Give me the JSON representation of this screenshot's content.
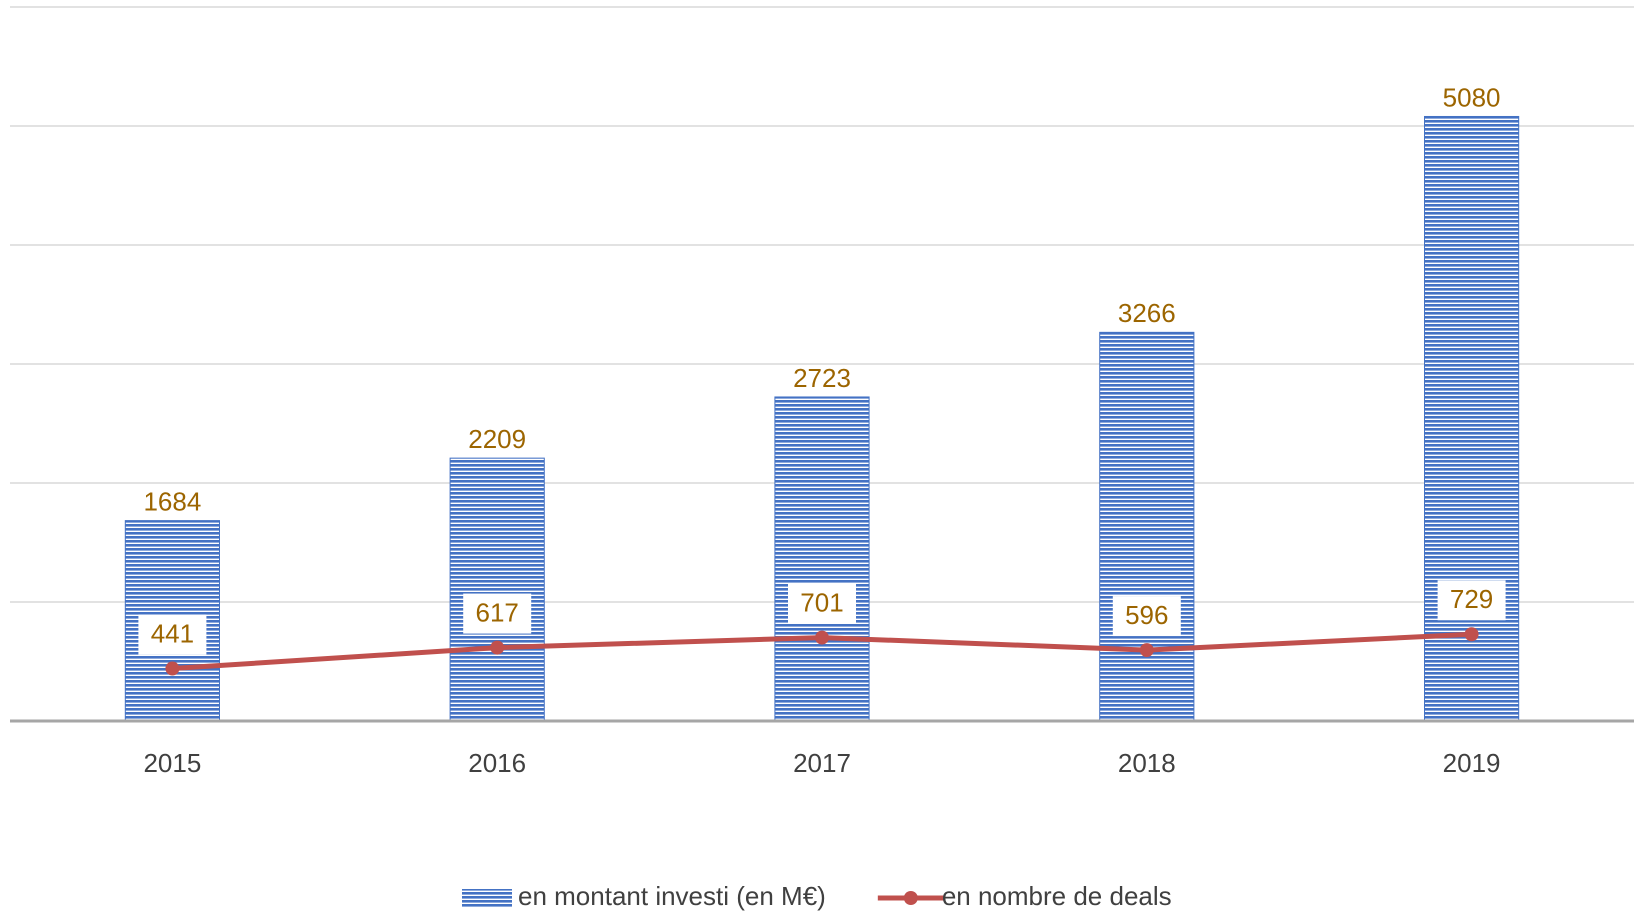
{
  "chart_data": {
    "type": "bar",
    "categories": [
      "2015",
      "2016",
      "2017",
      "2018",
      "2019"
    ],
    "series": [
      {
        "name": "en montant investi (en M€)",
        "type": "bar",
        "color": "#4472c4",
        "values": [
          1684,
          2209,
          2723,
          3266,
          5080
        ]
      },
      {
        "name": "en nombre de deals",
        "type": "line",
        "color": "#c0504d",
        "values": [
          441,
          617,
          701,
          596,
          729
        ]
      }
    ],
    "ylim": [
      0,
      6000
    ],
    "yticks": [
      0,
      1000,
      2000,
      3000,
      4000,
      5000,
      6000
    ],
    "grid": true,
    "data_label_color": "#9c6500",
    "legend": "bottom"
  }
}
